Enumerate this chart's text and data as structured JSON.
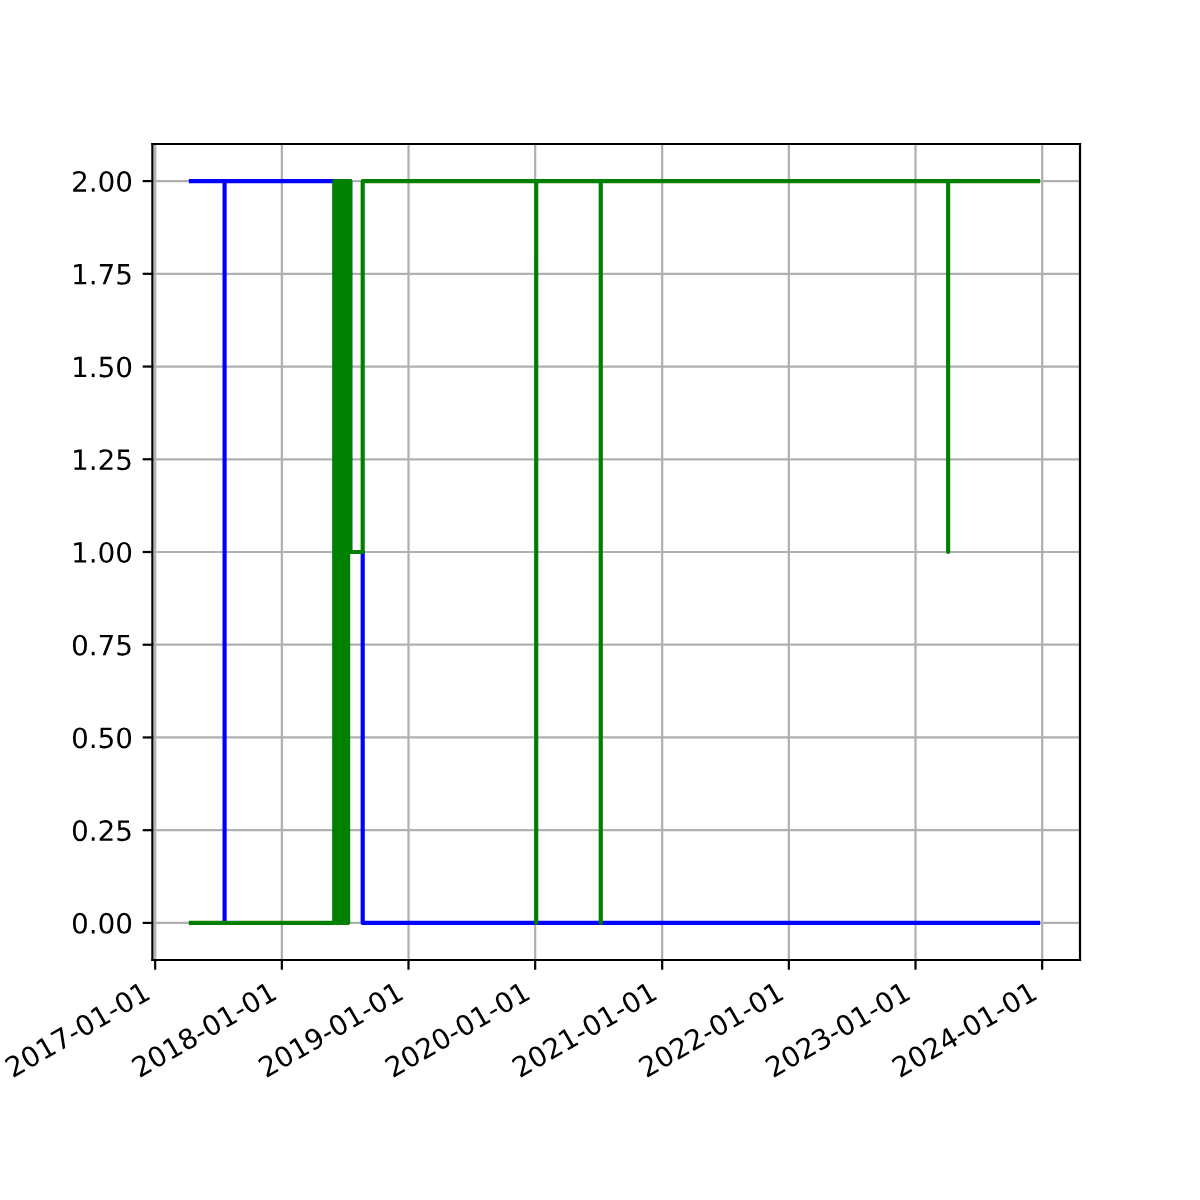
{
  "chart_data": {
    "type": "line",
    "series": [
      {
        "color": "#0000ff",
        "x": [
          "2017-04-14",
          "2017-07-20",
          "2017-07-20",
          "2017-07-20",
          "2018-07-17",
          "2018-07-17",
          "2018-08-22",
          "2018-08-22",
          "2023-12-20"
        ],
        "values": [
          2,
          2,
          0,
          2,
          2,
          1,
          1,
          0,
          0
        ]
      },
      {
        "color": "#008000",
        "x": [
          "2017-04-14",
          "2018-06-01",
          "2018-06-01",
          "2018-06-06",
          "2018-06-06",
          "2018-06-11",
          "2018-06-11",
          "2018-06-16",
          "2018-06-16",
          "2018-06-21",
          "2018-06-21",
          "2018-06-26",
          "2018-06-26",
          "2018-07-01",
          "2018-07-01",
          "2018-07-06",
          "2018-07-06",
          "2018-07-11",
          "2018-07-11",
          "2018-07-17",
          "2018-07-17",
          "2018-08-22",
          "2018-08-22",
          "2020-01-04",
          "2020-01-04",
          "2020-01-04",
          "2020-07-08",
          "2020-07-08",
          "2020-07-08",
          "2023-04-05",
          "2023-04-05",
          "2023-04-05",
          "2023-12-20"
        ],
        "values": [
          0,
          0,
          2,
          2,
          0,
          0,
          2,
          2,
          0,
          0,
          2,
          2,
          0,
          0,
          2,
          2,
          0,
          0,
          2,
          2,
          1,
          1,
          2,
          2,
          0,
          2,
          2,
          0,
          2,
          2,
          1,
          2,
          2
        ]
      }
    ],
    "xlim": [
      "2016-12-24",
      "2024-04-19"
    ],
    "xticks": [
      "2017-01-01",
      "2018-01-01",
      "2019-01-01",
      "2020-01-01",
      "2021-01-01",
      "2022-01-01",
      "2023-01-01",
      "2024-01-01"
    ],
    "ylim": [
      -0.1,
      2.1
    ],
    "yticks": [
      {
        "value": 0,
        "label": "0.00"
      },
      {
        "value": 0.25,
        "label": "0.25"
      },
      {
        "value": 0.5,
        "label": "0.50"
      },
      {
        "value": 0.75,
        "label": "0.75"
      },
      {
        "value": 1,
        "label": "1.00"
      },
      {
        "value": 1.25,
        "label": "1.25"
      },
      {
        "value": 1.5,
        "label": "1.50"
      },
      {
        "value": 1.75,
        "label": "1.75"
      },
      {
        "value": 2,
        "label": "2.00"
      }
    ],
    "grid": true
  }
}
